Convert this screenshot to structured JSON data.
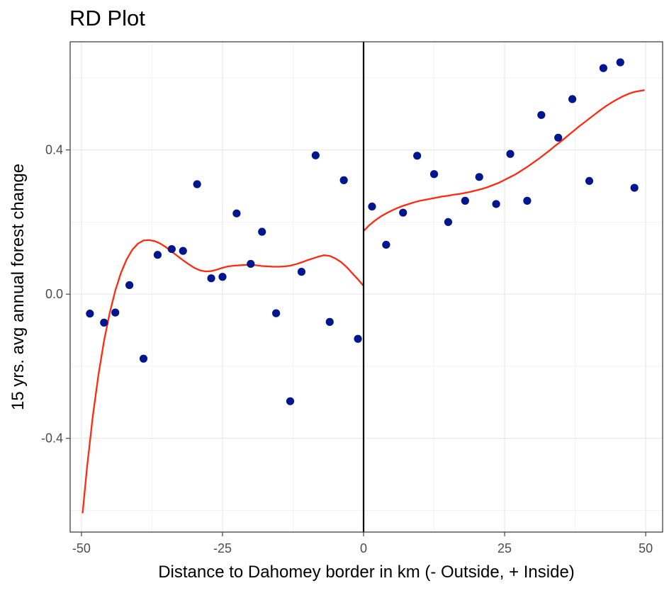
{
  "chart_data": {
    "type": "scatter",
    "title": "RD Plot",
    "xlabel": "Distance to Dahomey border in km (- Outside, + Inside)",
    "ylabel": "15 yrs. avg annual forest change",
    "xlim": [
      -52,
      53
    ],
    "ylim": [
      -0.66,
      0.7
    ],
    "x_ticks": [
      -50,
      -25,
      0,
      25,
      50
    ],
    "x_tick_labels": [
      "-50",
      "-25",
      "0",
      "25",
      "50"
    ],
    "y_ticks": [
      -0.4,
      0.0,
      0.4
    ],
    "y_tick_labels": [
      "-0.4",
      "0.0",
      "0.4"
    ],
    "grid": true,
    "cutoff": 0,
    "colors": {
      "points": "#00168f",
      "fit": "#ff2a0f",
      "cutoff": "#000000"
    },
    "points": [
      {
        "x": -48.5,
        "y": -0.054
      },
      {
        "x": -46.0,
        "y": -0.079
      },
      {
        "x": -44.0,
        "y": -0.051
      },
      {
        "x": -41.5,
        "y": 0.025
      },
      {
        "x": -39.0,
        "y": -0.179
      },
      {
        "x": -36.5,
        "y": 0.109
      },
      {
        "x": -34.0,
        "y": 0.125
      },
      {
        "x": -32.0,
        "y": 0.12
      },
      {
        "x": -29.5,
        "y": 0.305
      },
      {
        "x": -27.0,
        "y": 0.044
      },
      {
        "x": -25.0,
        "y": 0.048
      },
      {
        "x": -22.5,
        "y": 0.224
      },
      {
        "x": -20.0,
        "y": 0.084
      },
      {
        "x": -18.0,
        "y": 0.173
      },
      {
        "x": -15.5,
        "y": -0.053
      },
      {
        "x": -13.0,
        "y": -0.297
      },
      {
        "x": -11.0,
        "y": 0.062
      },
      {
        "x": -8.5,
        "y": 0.385
      },
      {
        "x": -6.0,
        "y": -0.077
      },
      {
        "x": -3.5,
        "y": 0.316
      },
      {
        "x": -1.0,
        "y": -0.124
      },
      {
        "x": 1.5,
        "y": 0.243
      },
      {
        "x": 4.0,
        "y": 0.137
      },
      {
        "x": 7.0,
        "y": 0.226
      },
      {
        "x": 9.5,
        "y": 0.384
      },
      {
        "x": 12.5,
        "y": 0.333
      },
      {
        "x": 15.0,
        "y": 0.2
      },
      {
        "x": 18.0,
        "y": 0.259
      },
      {
        "x": 20.5,
        "y": 0.325
      },
      {
        "x": 23.5,
        "y": 0.25
      },
      {
        "x": 26.0,
        "y": 0.389
      },
      {
        "x": 29.0,
        "y": 0.259
      },
      {
        "x": 31.5,
        "y": 0.497
      },
      {
        "x": 34.5,
        "y": 0.434
      },
      {
        "x": 37.0,
        "y": 0.541
      },
      {
        "x": 40.0,
        "y": 0.314
      },
      {
        "x": 42.5,
        "y": 0.627
      },
      {
        "x": 45.5,
        "y": 0.643
      },
      {
        "x": 48.0,
        "y": 0.295
      }
    ],
    "fit_left": {
      "x": [
        -49.8,
        -49,
        -48,
        -47,
        -46,
        -45,
        -44,
        -43,
        -42,
        -41,
        -40,
        -39,
        -38,
        -37,
        -36,
        -35,
        -34,
        -33,
        -32,
        -31,
        -30,
        -29,
        -28,
        -27,
        -26,
        -25,
        -24,
        -23,
        -22,
        -21,
        -20,
        -19,
        -18,
        -17,
        -16,
        -15,
        -14,
        -13,
        -12,
        -11,
        -10,
        -9,
        -8,
        -7,
        -6,
        -5,
        -4,
        -3,
        -2,
        -1,
        0
      ],
      "y": [
        -0.608,
        -0.479,
        -0.34,
        -0.225,
        -0.13,
        -0.053,
        0.01,
        0.059,
        0.096,
        0.123,
        0.14,
        0.149,
        0.15,
        0.147,
        0.14,
        0.13,
        0.118,
        0.106,
        0.094,
        0.083,
        0.073,
        0.066,
        0.063,
        0.064,
        0.068,
        0.073,
        0.077,
        0.079,
        0.08,
        0.081,
        0.082,
        0.08,
        0.078,
        0.077,
        0.076,
        0.076,
        0.077,
        0.079,
        0.083,
        0.088,
        0.094,
        0.099,
        0.104,
        0.108,
        0.106,
        0.099,
        0.089,
        0.075,
        0.058,
        0.041,
        0.023
      ]
    },
    "fit_right": {
      "x": [
        0,
        1,
        2,
        3,
        4,
        5,
        6,
        7,
        8,
        9,
        10,
        11,
        12,
        13,
        14,
        15,
        16,
        17,
        18,
        19,
        20,
        21,
        22,
        23,
        24,
        25,
        26,
        27,
        28,
        29,
        30,
        31,
        32,
        33,
        34,
        35,
        36,
        37,
        38,
        39,
        40,
        41,
        42,
        43,
        44,
        45,
        46,
        47,
        48,
        49,
        49.8
      ],
      "y": [
        0.175,
        0.191,
        0.204,
        0.215,
        0.224,
        0.232,
        0.239,
        0.245,
        0.25,
        0.255,
        0.259,
        0.262,
        0.265,
        0.268,
        0.271,
        0.273,
        0.276,
        0.278,
        0.281,
        0.284,
        0.288,
        0.292,
        0.297,
        0.303,
        0.309,
        0.317,
        0.325,
        0.333,
        0.343,
        0.353,
        0.364,
        0.375,
        0.387,
        0.399,
        0.412,
        0.424,
        0.437,
        0.45,
        0.463,
        0.475,
        0.487,
        0.499,
        0.511,
        0.522,
        0.532,
        0.541,
        0.549,
        0.556,
        0.561,
        0.564,
        0.566
      ]
    }
  }
}
